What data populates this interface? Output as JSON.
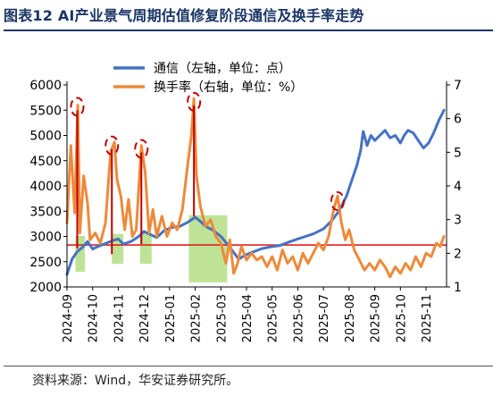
{
  "title": "图表12 AI产业景气周期估值修复阶段通信及换手率走势",
  "source": "资料来源：Wind，华安证券研究所。",
  "chart_data": {
    "type": "line",
    "title": "图表12 AI产业景气周期估值修复阶段通信及换手率走势",
    "x_tick_labels": [
      "2024-09",
      "2024-10",
      "2024-11",
      "2024-12",
      "2025-01",
      "2025-02",
      "2025-03",
      "2025-04",
      "2025-05",
      "2025-06",
      "2025-07",
      "2025-08",
      "2025-09",
      "2025-10",
      "2025-11"
    ],
    "x_range": [
      0,
      14.8
    ],
    "left_axis": {
      "ylim": [
        2000,
        6000
      ],
      "ticks": [
        2000,
        2500,
        3000,
        3500,
        4000,
        4500,
        5000,
        5500,
        6000
      ]
    },
    "right_axis": {
      "ylim": [
        1,
        7
      ],
      "ticks": [
        1,
        2,
        3,
        4,
        5,
        6,
        7
      ]
    },
    "legend": {
      "position": "top-center"
    },
    "grid": false,
    "colors": {
      "telecom": "#4472c4",
      "turnover": "#ed8a3a",
      "reference_line": "#e02020",
      "peak_marker": "#c00000",
      "highlight": "#92d050",
      "title": "#1a3566"
    },
    "series": [
      {
        "name": "通信（左轴，单位：点）",
        "axis": "left",
        "points": [
          [
            0,
            2250
          ],
          [
            0.2,
            2550
          ],
          [
            0.4,
            2700
          ],
          [
            0.6,
            2780
          ],
          [
            0.8,
            2900
          ],
          [
            1.0,
            2750
          ],
          [
            1.2,
            2800
          ],
          [
            1.5,
            2860
          ],
          [
            1.8,
            2920
          ],
          [
            2.0,
            2950
          ],
          [
            2.2,
            2850
          ],
          [
            2.5,
            2900
          ],
          [
            2.8,
            3000
          ],
          [
            3.0,
            3100
          ],
          [
            3.2,
            3050
          ],
          [
            3.5,
            2980
          ],
          [
            3.8,
            3120
          ],
          [
            4.1,
            3180
          ],
          [
            4.4,
            3200
          ],
          [
            4.7,
            3280
          ],
          [
            5.0,
            3380
          ],
          [
            5.2,
            3300
          ],
          [
            5.4,
            3200
          ],
          [
            5.7,
            3120
          ],
          [
            6.0,
            3000
          ],
          [
            6.2,
            2880
          ],
          [
            6.4,
            2750
          ],
          [
            6.55,
            2650
          ],
          [
            6.7,
            2550
          ],
          [
            6.85,
            2600
          ],
          [
            7.0,
            2640
          ],
          [
            7.3,
            2700
          ],
          [
            7.6,
            2760
          ],
          [
            8.0,
            2800
          ],
          [
            8.3,
            2820
          ],
          [
            8.6,
            2880
          ],
          [
            9.0,
            2950
          ],
          [
            9.3,
            3000
          ],
          [
            9.6,
            3050
          ],
          [
            10.0,
            3150
          ],
          [
            10.3,
            3300
          ],
          [
            10.6,
            3500
          ],
          [
            10.9,
            3800
          ],
          [
            11.1,
            4100
          ],
          [
            11.3,
            4400
          ],
          [
            11.45,
            4700
          ],
          [
            11.55,
            5080
          ],
          [
            11.7,
            4800
          ],
          [
            11.85,
            5000
          ],
          [
            12.0,
            4900
          ],
          [
            12.2,
            5000
          ],
          [
            12.4,
            5100
          ],
          [
            12.6,
            4950
          ],
          [
            12.8,
            5000
          ],
          [
            13.0,
            4850
          ],
          [
            13.15,
            5000
          ],
          [
            13.3,
            5100
          ],
          [
            13.5,
            5050
          ],
          [
            13.7,
            4900
          ],
          [
            13.9,
            4750
          ],
          [
            14.1,
            4850
          ],
          [
            14.3,
            5050
          ],
          [
            14.5,
            5300
          ],
          [
            14.7,
            5500
          ]
        ]
      },
      {
        "name": "换手率（右轴，单位：%）",
        "axis": "right",
        "points": [
          [
            0,
            2.9
          ],
          [
            0.15,
            5.2
          ],
          [
            0.3,
            3.2
          ],
          [
            0.42,
            6.4
          ],
          [
            0.5,
            2.6
          ],
          [
            0.65,
            4.3
          ],
          [
            0.8,
            3.5
          ],
          [
            0.9,
            2.4
          ],
          [
            1.1,
            2.6
          ],
          [
            1.3,
            2.3
          ],
          [
            1.5,
            2.9
          ],
          [
            1.7,
            5.0
          ],
          [
            1.85,
            5.3
          ],
          [
            1.95,
            4.2
          ],
          [
            2.1,
            3.7
          ],
          [
            2.25,
            2.7
          ],
          [
            2.4,
            3.6
          ],
          [
            2.55,
            2.5
          ],
          [
            2.7,
            2.7
          ],
          [
            2.9,
            5.2
          ],
          [
            3.05,
            4.4
          ],
          [
            3.2,
            2.6
          ],
          [
            3.35,
            3.3
          ],
          [
            3.5,
            2.5
          ],
          [
            3.7,
            3.1
          ],
          [
            3.9,
            2.5
          ],
          [
            4.1,
            2.9
          ],
          [
            4.3,
            2.7
          ],
          [
            4.5,
            3.3
          ],
          [
            4.7,
            4.6
          ],
          [
            4.85,
            5.5
          ],
          [
            4.95,
            6.6
          ],
          [
            5.05,
            4.3
          ],
          [
            5.2,
            3.4
          ],
          [
            5.4,
            2.8
          ],
          [
            5.6,
            3.0
          ],
          [
            5.8,
            2.5
          ],
          [
            6.0,
            2.3
          ],
          [
            6.2,
            1.7
          ],
          [
            6.35,
            2.4
          ],
          [
            6.5,
            1.4
          ],
          [
            6.65,
            1.7
          ],
          [
            6.8,
            2.2
          ],
          [
            7.0,
            1.8
          ],
          [
            7.2,
            2.0
          ],
          [
            7.4,
            1.8
          ],
          [
            7.6,
            1.9
          ],
          [
            7.8,
            1.6
          ],
          [
            8.0,
            1.9
          ],
          [
            8.2,
            1.5
          ],
          [
            8.4,
            2.1
          ],
          [
            8.6,
            1.7
          ],
          [
            8.8,
            1.9
          ],
          [
            9.0,
            1.5
          ],
          [
            9.2,
            2.0
          ],
          [
            9.4,
            1.7
          ],
          [
            9.6,
            2.0
          ],
          [
            9.8,
            2.3
          ],
          [
            10.0,
            2.1
          ],
          [
            10.2,
            2.5
          ],
          [
            10.4,
            3.3
          ],
          [
            10.55,
            3.7
          ],
          [
            10.7,
            2.9
          ],
          [
            10.85,
            2.4
          ],
          [
            11.0,
            2.7
          ],
          [
            11.2,
            2.1
          ],
          [
            11.4,
            1.8
          ],
          [
            11.6,
            1.5
          ],
          [
            11.8,
            1.7
          ],
          [
            12.0,
            1.5
          ],
          [
            12.2,
            1.8
          ],
          [
            12.4,
            1.6
          ],
          [
            12.6,
            1.3
          ],
          [
            12.8,
            1.6
          ],
          [
            13.0,
            1.4
          ],
          [
            13.2,
            1.7
          ],
          [
            13.4,
            1.5
          ],
          [
            13.6,
            1.9
          ],
          [
            13.8,
            1.6
          ],
          [
            14.0,
            2.0
          ],
          [
            14.2,
            1.9
          ],
          [
            14.4,
            2.3
          ],
          [
            14.55,
            2.2
          ],
          [
            14.7,
            2.5
          ]
        ]
      }
    ],
    "reference_line": {
      "axis": "left",
      "value": 2830
    },
    "highlight_bands": [
      {
        "x_start": 0.33,
        "x_end": 0.7,
        "axis": "left",
        "y_bottom": 2300,
        "y_top": 3010
      },
      {
        "x_start": 1.75,
        "x_end": 2.2,
        "axis": "left",
        "y_bottom": 2460,
        "y_top": 3050
      },
      {
        "x_start": 2.85,
        "x_end": 3.3,
        "axis": "left",
        "y_bottom": 2460,
        "y_top": 3080
      },
      {
        "x_start": 4.75,
        "x_end": 6.25,
        "axis": "left",
        "y_bottom": 2090,
        "y_top": 3420
      }
    ],
    "peak_markers": [
      {
        "x": 0.4,
        "y_right": 6.35,
        "drop_to_left": 2760
      },
      {
        "x": 1.75,
        "y_right": 5.2,
        "drop_to_left": 2650
      },
      {
        "x": 2.9,
        "y_right": 5.1,
        "drop_to_left": 2850
      },
      {
        "x": 4.95,
        "y_right": 6.5,
        "drop_to_left": 3400
      },
      {
        "x": 10.55,
        "y_right": 3.55,
        "drop_to_left": null
      }
    ]
  }
}
